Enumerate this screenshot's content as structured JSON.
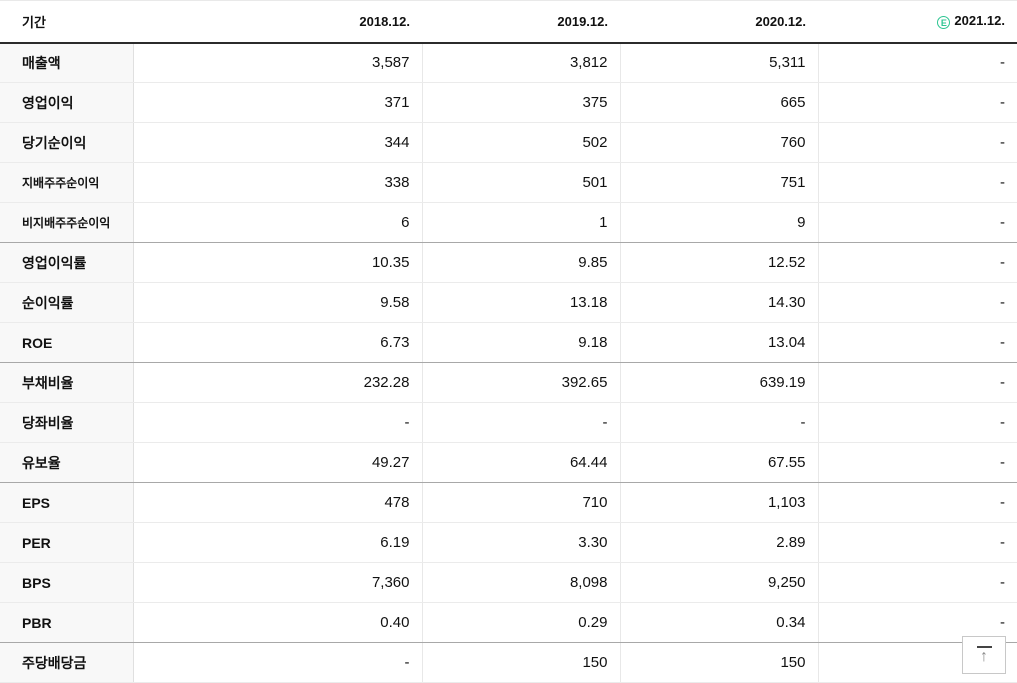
{
  "table": {
    "period_label": "기간",
    "columns": [
      "2018.12.",
      "2019.12.",
      "2020.12.",
      "2021.12."
    ],
    "estimate_badge": "E",
    "estimate_color": "#2ec592",
    "rows": [
      {
        "label": "매출액",
        "sub": false,
        "values": [
          "3,587",
          "3,812",
          "5,311",
          "-"
        ]
      },
      {
        "label": "영업이익",
        "sub": false,
        "values": [
          "371",
          "375",
          "665",
          "-"
        ]
      },
      {
        "label": "당기순이익",
        "sub": false,
        "values": [
          "344",
          "502",
          "760",
          "-"
        ]
      },
      {
        "label": "지배주주순이익",
        "sub": true,
        "values": [
          "338",
          "501",
          "751",
          "-"
        ]
      },
      {
        "label": "비지배주주순이익",
        "sub": true,
        "values": [
          "6",
          "1",
          "9",
          "-"
        ]
      },
      {
        "label": "영업이익률",
        "sub": false,
        "group_start": true,
        "values": [
          "10.35",
          "9.85",
          "12.52",
          "-"
        ]
      },
      {
        "label": "순이익률",
        "sub": false,
        "values": [
          "9.58",
          "13.18",
          "14.30",
          "-"
        ]
      },
      {
        "label": "ROE",
        "sub": false,
        "values": [
          "6.73",
          "9.18",
          "13.04",
          "-"
        ]
      },
      {
        "label": "부채비율",
        "sub": false,
        "group_start": true,
        "values": [
          "232.28",
          "392.65",
          "639.19",
          "-"
        ]
      },
      {
        "label": "당좌비율",
        "sub": false,
        "values": [
          "-",
          "-",
          "-",
          "-"
        ]
      },
      {
        "label": "유보율",
        "sub": false,
        "values": [
          "49.27",
          "64.44",
          "67.55",
          "-"
        ]
      },
      {
        "label": "EPS",
        "sub": false,
        "group_start": true,
        "values": [
          "478",
          "710",
          "1,103",
          "-"
        ]
      },
      {
        "label": "PER",
        "sub": false,
        "values": [
          "6.19",
          "3.30",
          "2.89",
          "-"
        ]
      },
      {
        "label": "BPS",
        "sub": false,
        "values": [
          "7,360",
          "8,098",
          "9,250",
          "-"
        ]
      },
      {
        "label": "PBR",
        "sub": false,
        "values": [
          "0.40",
          "0.29",
          "0.34",
          "-"
        ]
      },
      {
        "label": "주당배당금",
        "sub": false,
        "group_start": true,
        "values": [
          "-",
          "150",
          "150",
          "-"
        ]
      }
    ],
    "colors": {
      "header_border": "#2b2b2b",
      "row_border": "#ebebeb",
      "group_border": "#a8a8a8",
      "label_bg": "#f8f8f8",
      "text": "#111111"
    }
  },
  "scroll_top": {
    "icon_glyph": "↑"
  }
}
